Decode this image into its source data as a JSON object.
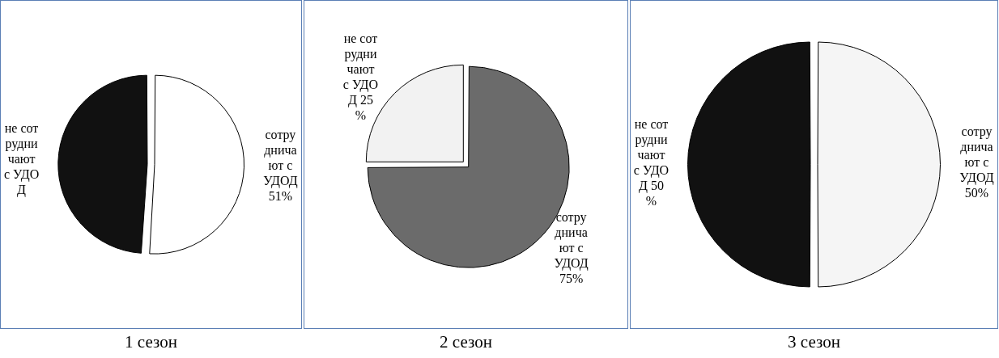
{
  "chart_data": [
    {
      "type": "pie",
      "title": "1 сезон",
      "categories": [
        "сотрудничают с УДОД",
        "не сотрудничают с УДОД"
      ],
      "values": [
        51,
        49
      ],
      "colors": [
        "#ffffff",
        "#111111"
      ],
      "value_labels": [
        "51%",
        null
      ]
    },
    {
      "type": "pie",
      "title": "2 сезон",
      "categories": [
        "сотрудничают с УДОД",
        "не сотрудничают с УДОД"
      ],
      "values": [
        75,
        25
      ],
      "colors": [
        "#6b6b6b",
        "#f2f2f2"
      ],
      "value_labels": [
        "75%",
        "25%"
      ]
    },
    {
      "type": "pie",
      "title": "3 сезон",
      "categories": [
        "сотрудничают с УДОД",
        "не сотрудничают с УДОД"
      ],
      "values": [
        50,
        50
      ],
      "colors": [
        "#f5f5f5",
        "#111111"
      ],
      "value_labels": [
        "50%",
        "50%"
      ]
    }
  ]
}
